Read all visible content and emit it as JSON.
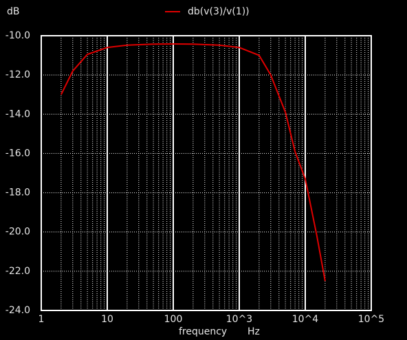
{
  "chart_data": {
    "type": "line",
    "y_label": "dB",
    "x_label": "frequency",
    "x_unit": "Hz",
    "x_scale": "log",
    "grid": true,
    "minor_grid": true,
    "legend": "top",
    "x": [
      2,
      3,
      5,
      10,
      20,
      50,
      100,
      200,
      500,
      1000,
      2000,
      3000,
      5000,
      7000,
      10000,
      15000,
      20000
    ],
    "series": [
      {
        "name": "db(v(3)/v(1))",
        "color": "#e00000",
        "values": [
          -13.0,
          -11.8,
          -10.95,
          -10.6,
          -10.48,
          -10.43,
          -10.42,
          -10.43,
          -10.48,
          -10.6,
          -11.0,
          -12.0,
          -13.9,
          -15.9,
          -17.3,
          -20.2,
          -22.5
        ]
      }
    ],
    "xlim": [
      1,
      100000
    ],
    "xticks": [
      1,
      10,
      100,
      {
        "value": 1000,
        "label": "10^3"
      },
      {
        "value": 10000,
        "label": "10^4"
      },
      {
        "value": 100000,
        "label": "10^5"
      }
    ],
    "ylim": [
      -24,
      -10
    ],
    "yticks": [
      {
        "value": -10,
        "label": "-10.0"
      },
      {
        "value": -12,
        "label": "-12.0"
      },
      {
        "value": -14,
        "label": "-14.0"
      },
      {
        "value": -16,
        "label": "-16.0"
      },
      {
        "value": -18,
        "label": "-18.0"
      },
      {
        "value": -20,
        "label": "-20.0"
      },
      {
        "value": -22,
        "label": "-22.0"
      },
      {
        "value": -24,
        "label": "-24.0"
      }
    ]
  }
}
